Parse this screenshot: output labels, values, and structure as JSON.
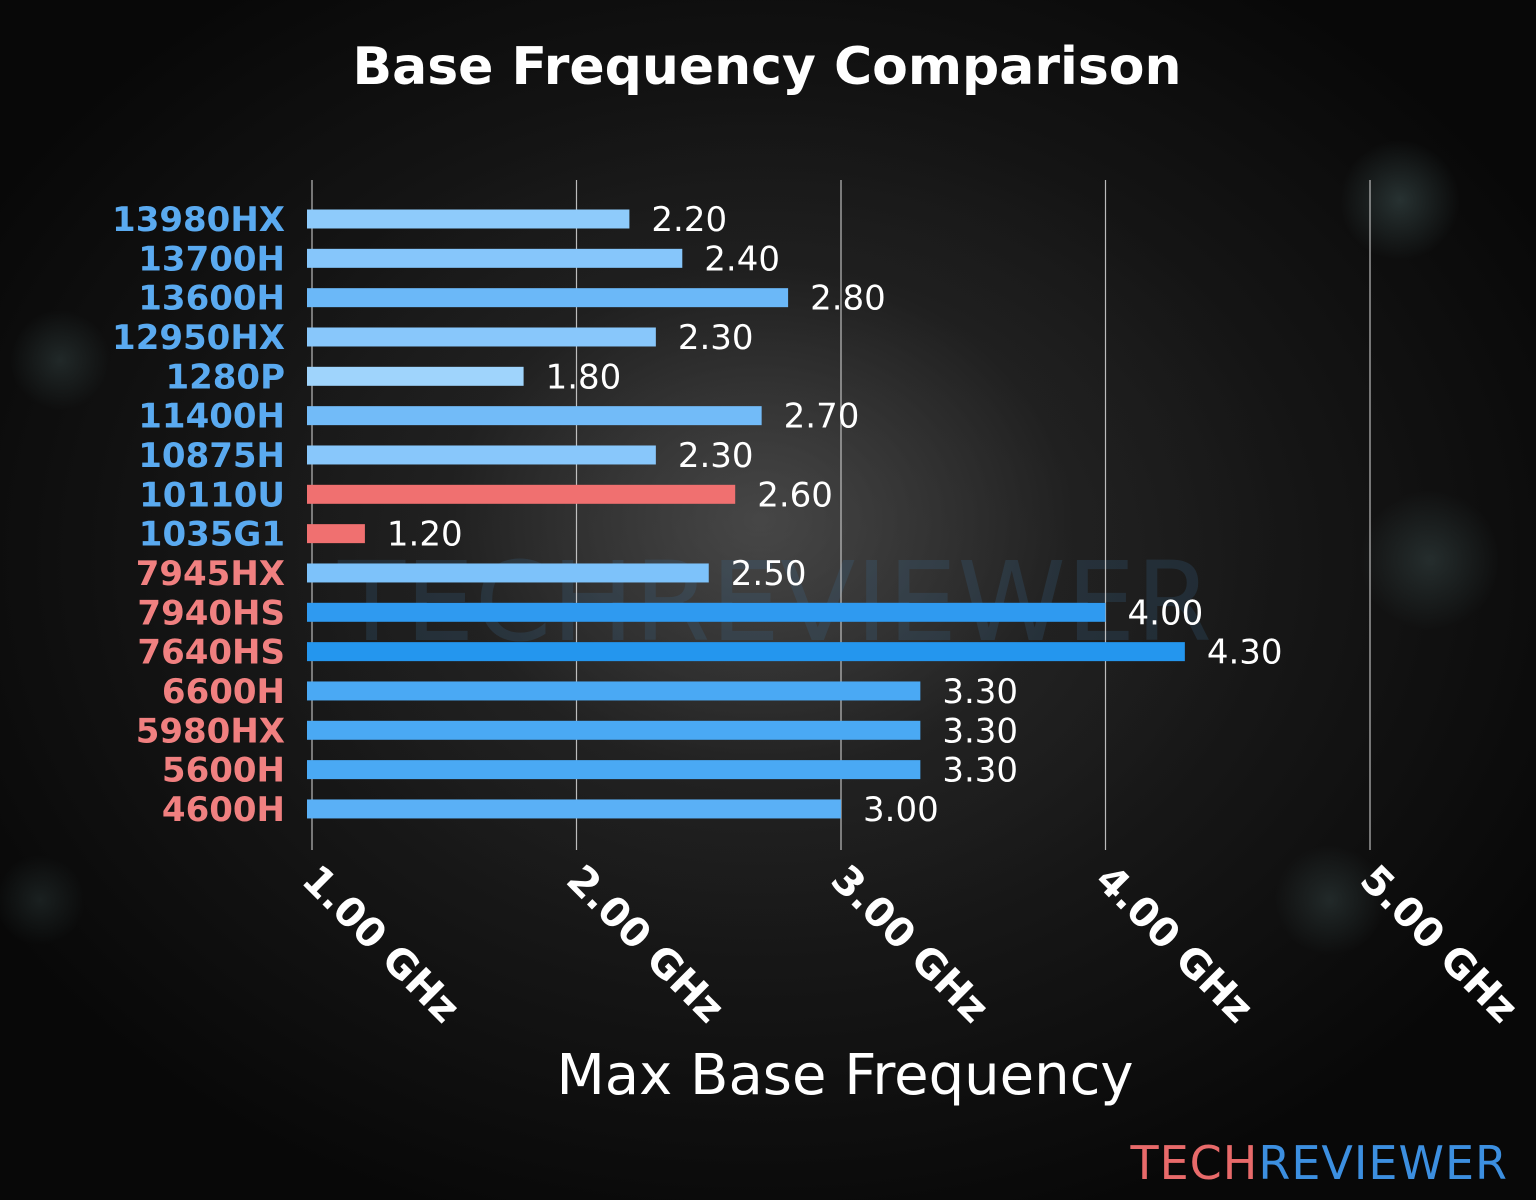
{
  "chart_data": {
    "type": "bar",
    "orientation": "horizontal",
    "title": "Base Frequency Comparison",
    "xlabel": "Max Base Frequency",
    "ylabel": "",
    "xlim": [
      1.0,
      5.0
    ],
    "x_ticks": [
      1,
      2,
      3,
      4,
      5
    ],
    "x_tick_labels": [
      "1.00 GHz",
      "2.00 GHz",
      "3.00 GHz",
      "4.00 GHz",
      "5.00 GHz"
    ],
    "grid": "vertical",
    "categories": [
      "13980HX",
      "13700H",
      "13600H",
      "12950HX",
      "1280P",
      "11400H",
      "10875H",
      "10110U",
      "1035G1",
      "7945HX",
      "7940HS",
      "7640HS",
      "6600H",
      "5980HX",
      "5600H",
      "4600H"
    ],
    "values": [
      2.2,
      2.4,
      2.8,
      2.3,
      1.8,
      2.7,
      2.3,
      2.6,
      1.2,
      2.5,
      4.0,
      4.3,
      3.3,
      3.3,
      3.3,
      3.0
    ],
    "value_labels": [
      "2.20",
      "2.40",
      "2.80",
      "2.30",
      "1.80",
      "2.70",
      "2.30",
      "2.60",
      "1.20",
      "2.50",
      "4.00",
      "4.30",
      "3.30",
      "3.30",
      "3.30",
      "3.00"
    ],
    "category_label_colors": [
      "#5aaaf0",
      "#5aaaf0",
      "#5aaaf0",
      "#5aaaf0",
      "#5aaaf0",
      "#5aaaf0",
      "#5aaaf0",
      "#5aaaf0",
      "#5aaaf0",
      "#f08080",
      "#f08080",
      "#f08080",
      "#f08080",
      "#f08080",
      "#f08080",
      "#f08080"
    ],
    "bar_colors": [
      "#8ecbfb",
      "#86c6fb",
      "#6bb8f8",
      "#88c7fb",
      "#9fd4fc",
      "#72bbf8",
      "#88c7fb",
      "#f07070",
      "#f07070",
      "#7dc2fa",
      "#2f9af0",
      "#2496ee",
      "#4aa9f4",
      "#4aa9f4",
      "#4aa9f4",
      "#5ab0f6"
    ]
  },
  "colors": {
    "title": "#ffffff",
    "value_label": "#ffffff",
    "grid": "#d8d8d8"
  },
  "watermark": "TECHREVIEWER",
  "brand": {
    "part1": "TECH",
    "part2": "REVIEWER",
    "color1": "#e86a6a",
    "color2": "#3c8fe0"
  }
}
